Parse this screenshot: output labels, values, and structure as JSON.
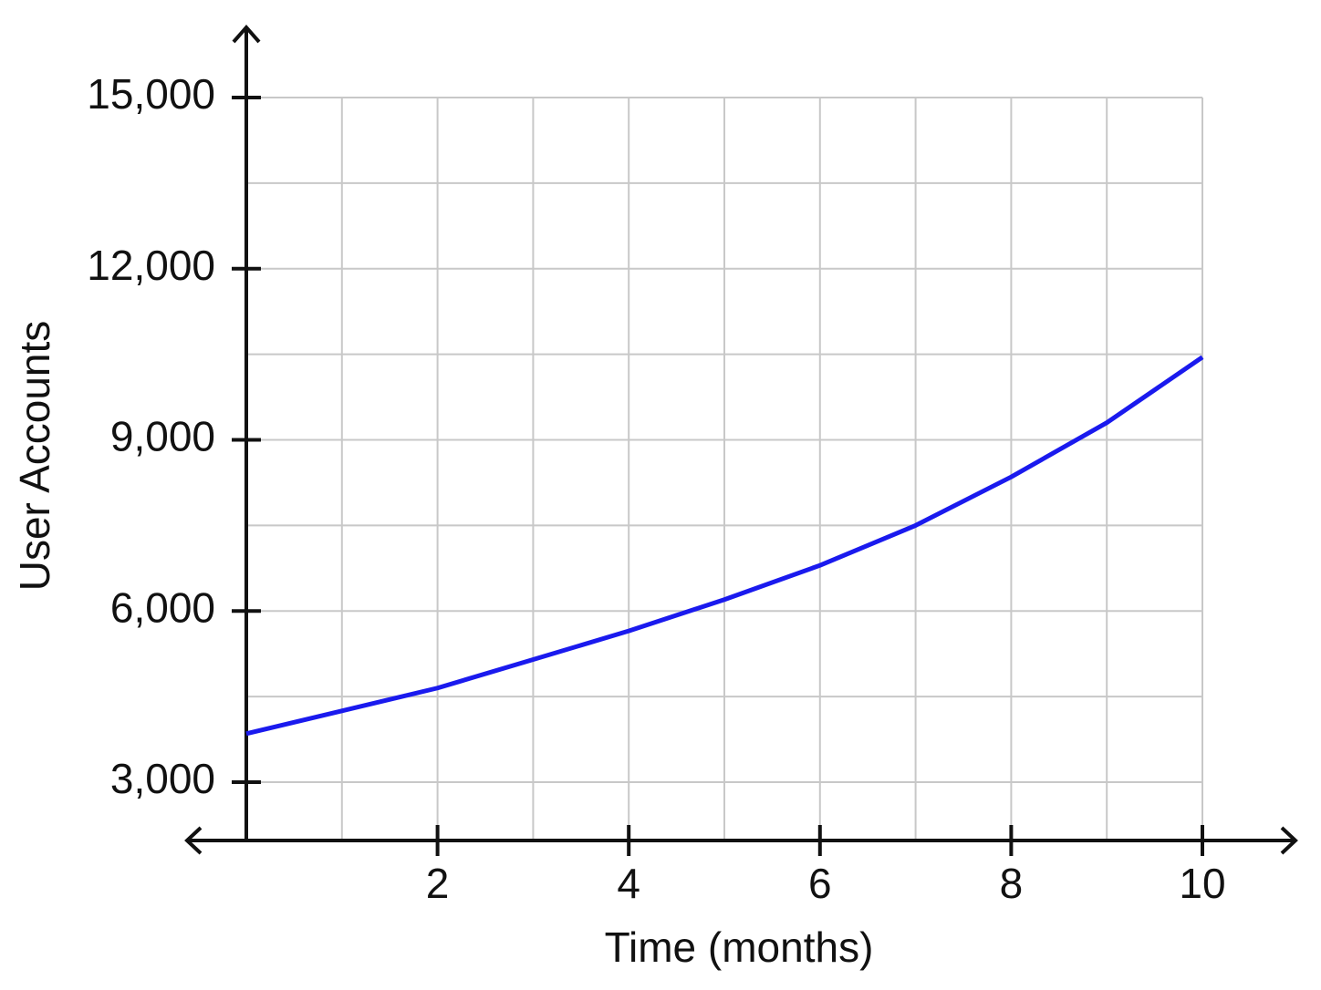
{
  "chart_data": {
    "type": "line",
    "x_label": "Time (months)",
    "y_label": "User Accounts",
    "x": [
      0,
      1,
      2,
      3,
      4,
      5,
      6,
      7,
      8,
      9,
      10
    ],
    "series": [
      {
        "color": "#1a1aee",
        "values": [
          3850,
          4250,
          4650,
          5150,
          5650,
          6200,
          6800,
          7500,
          8350,
          9300,
          10450
        ]
      }
    ],
    "xlim": [
      0,
      10
    ],
    "ylim": [
      2000,
      15000
    ],
    "xticks": [
      2,
      4,
      6,
      8,
      10
    ],
    "yticks": [
      {
        "value": 3000,
        "label": "3,000"
      },
      {
        "value": 6000,
        "label": "6,000"
      },
      {
        "value": 9000,
        "label": "9,000"
      },
      {
        "value": 12000,
        "label": "12,000"
      },
      {
        "value": 15000,
        "label": "15,000"
      }
    ],
    "xgrid": [
      1,
      2,
      3,
      4,
      5,
      6,
      7,
      8,
      9,
      10
    ],
    "ygrid": [
      3000,
      4500,
      6000,
      7500,
      9000,
      10500,
      12000,
      13500,
      15000
    ],
    "grid": true
  }
}
